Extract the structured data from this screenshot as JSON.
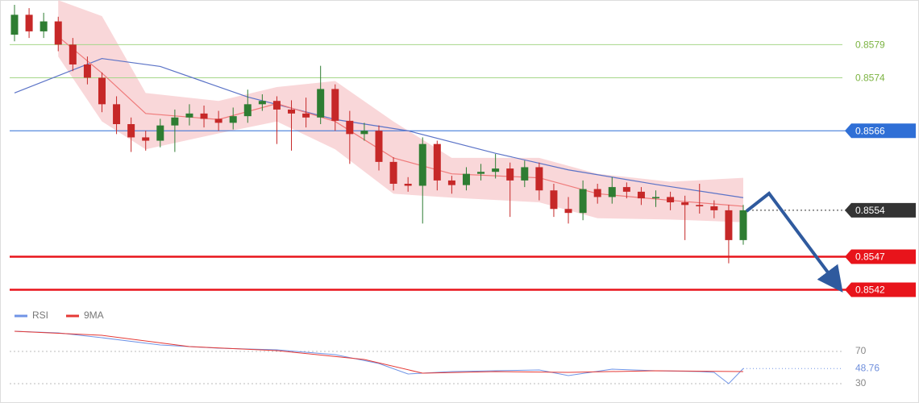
{
  "chart_data": [
    {
      "type": "candlestick",
      "ylim": [
        0.854,
        0.8585
      ],
      "up_color": "#2e7d32",
      "down_color": "#c62828",
      "open": [
        0.85805,
        0.85835,
        0.8581,
        0.85825,
        0.8579,
        0.8576,
        0.8574,
        0.857,
        0.8567,
        0.8565,
        0.85645,
        0.85668,
        0.8568,
        0.85686,
        0.85678,
        0.85672,
        0.85682,
        0.857,
        0.85705,
        0.85692,
        0.85686,
        0.8568,
        0.85723,
        0.85675,
        0.85655,
        0.8566,
        0.85613,
        0.8558,
        0.85577,
        0.8564,
        0.85585,
        0.85578,
        0.85595,
        0.85598,
        0.85603,
        0.85585,
        0.85605,
        0.8557,
        0.85542,
        0.85536,
        0.85572,
        0.8556,
        0.85575,
        0.85568,
        0.85558,
        0.8556,
        0.85552,
        0.85548,
        0.85546,
        0.8554,
        0.85495
      ],
      "high": [
        0.8585,
        0.85845,
        0.85838,
        0.85832,
        0.858,
        0.85772,
        0.85748,
        0.85712,
        0.8568,
        0.8566,
        0.85678,
        0.85692,
        0.857,
        0.85698,
        0.8569,
        0.85695,
        0.85722,
        0.85715,
        0.85712,
        0.85706,
        0.8571,
        0.85758,
        0.8573,
        0.8569,
        0.85672,
        0.85668,
        0.8562,
        0.8559,
        0.8565,
        0.85645,
        0.85592,
        0.85605,
        0.8561,
        0.85625,
        0.85612,
        0.85615,
        0.85612,
        0.8558,
        0.8556,
        0.85585,
        0.8558,
        0.8559,
        0.85582,
        0.85575,
        0.8557,
        0.85568,
        0.85562,
        0.8558,
        0.85555,
        0.85548,
        0.85548
      ],
      "low": [
        0.85795,
        0.858,
        0.858,
        0.8578,
        0.8575,
        0.8573,
        0.85688,
        0.85655,
        0.85628,
        0.8563,
        0.85635,
        0.85628,
        0.85668,
        0.85665,
        0.8566,
        0.85662,
        0.85672,
        0.8569,
        0.8564,
        0.8563,
        0.85665,
        0.8567,
        0.8566,
        0.8561,
        0.85645,
        0.856,
        0.8557,
        0.85568,
        0.8552,
        0.8557,
        0.85565,
        0.8557,
        0.85585,
        0.85588,
        0.8553,
        0.85575,
        0.85555,
        0.8553,
        0.8552,
        0.85525,
        0.8555,
        0.8555,
        0.85558,
        0.85548,
        0.85545,
        0.8554,
        0.85495,
        0.85535,
        0.85528,
        0.8546,
        0.85488
      ],
      "close": [
        0.85835,
        0.8581,
        0.85825,
        0.8579,
        0.8576,
        0.8574,
        0.857,
        0.8567,
        0.8565,
        0.85645,
        0.85668,
        0.8568,
        0.85686,
        0.85678,
        0.85672,
        0.85682,
        0.857,
        0.85705,
        0.85692,
        0.85686,
        0.8568,
        0.85723,
        0.85675,
        0.85655,
        0.8566,
        0.85613,
        0.8558,
        0.85577,
        0.8564,
        0.85585,
        0.85578,
        0.85595,
        0.85598,
        0.85603,
        0.85585,
        0.85605,
        0.8557,
        0.85542,
        0.85536,
        0.85572,
        0.8556,
        0.85575,
        0.85568,
        0.85558,
        0.8556,
        0.85552,
        0.85548,
        0.85546,
        0.8554,
        0.85495,
        0.8554
      ],
      "band": {
        "color": "#f7c9cc",
        "x": [
          3,
          6,
          9,
          14,
          18,
          22,
          26,
          30,
          36,
          40,
          45,
          50
        ],
        "upper": [
          0.85857,
          0.85833,
          0.85717,
          0.85705,
          0.85726,
          0.85735,
          0.85674,
          0.85619,
          0.85619,
          0.85595,
          0.85583,
          0.85589
        ],
        "lower": [
          0.85772,
          0.85674,
          0.85632,
          0.85656,
          0.85674,
          0.85632,
          0.85565,
          0.85559,
          0.85552,
          0.85528,
          0.85526,
          0.85522
        ]
      },
      "overlays": [
        {
          "color": "#5b73c7",
          "x": [
            0,
            6,
            10,
            16,
            22,
            27,
            33,
            38,
            44,
            50
          ],
          "values": [
            0.85717,
            0.85769,
            0.85757,
            0.85711,
            0.85677,
            0.8566,
            0.85626,
            0.85601,
            0.85579,
            0.85559
          ]
        },
        {
          "color": "#ef7a7a",
          "x": [
            3,
            6,
            9,
            14,
            18,
            22,
            26,
            30,
            36,
            40,
            45,
            50
          ],
          "values": [
            0.85802,
            0.85747,
            0.85686,
            0.85677,
            0.85701,
            0.85674,
            0.85619,
            0.85595,
            0.85589,
            0.85565,
            0.85555,
            0.85546
          ]
        }
      ],
      "levels": [
        {
          "value": 0.8579,
          "color": "#a6d78a",
          "text_color": "#7cb342",
          "box": false,
          "dotted": false,
          "width": 1
        },
        {
          "value": 0.8574,
          "color": "#a6d78a",
          "text_color": "#7cb342",
          "box": false,
          "dotted": false,
          "width": 1
        },
        {
          "value": 0.8566,
          "color": "#2f6fd6",
          "text_color": "#ffffff",
          "box": true,
          "dotted": false,
          "width": 1
        },
        {
          "value": 0.8554,
          "color": "#333333",
          "text_color": "#ffffff",
          "box": true,
          "dotted": true,
          "width": 1
        },
        {
          "value": 0.8547,
          "color": "#e8141b",
          "text_color": "#ffffff",
          "box": true,
          "dotted": false,
          "width": 2.5
        },
        {
          "value": 0.8542,
          "color": "#e8141b",
          "text_color": "#ffffff",
          "box": true,
          "dotted": false,
          "width": 2.5
        }
      ]
    },
    {
      "type": "line",
      "ylim": [
        20,
        100
      ],
      "yticks": [
        30,
        70
      ],
      "series": [
        {
          "name": "RSI",
          "color": "#7094e6",
          "x": [
            0,
            3,
            6,
            10,
            14,
            18,
            22,
            25,
            27,
            30,
            33,
            36,
            38,
            41,
            44,
            47,
            48,
            49,
            50
          ],
          "values": [
            95,
            93,
            87,
            78,
            74,
            72,
            66,
            55,
            42,
            45,
            46,
            47,
            40,
            48,
            46,
            45,
            44,
            30,
            48.76
          ]
        },
        {
          "name": "9MA",
          "color": "#e53935",
          "x": [
            0,
            6,
            12,
            18,
            24,
            28,
            33,
            38,
            44,
            50
          ],
          "values": [
            95,
            90,
            76,
            71,
            60,
            43,
            45,
            44,
            46,
            45
          ]
        }
      ]
    }
  ]
}
